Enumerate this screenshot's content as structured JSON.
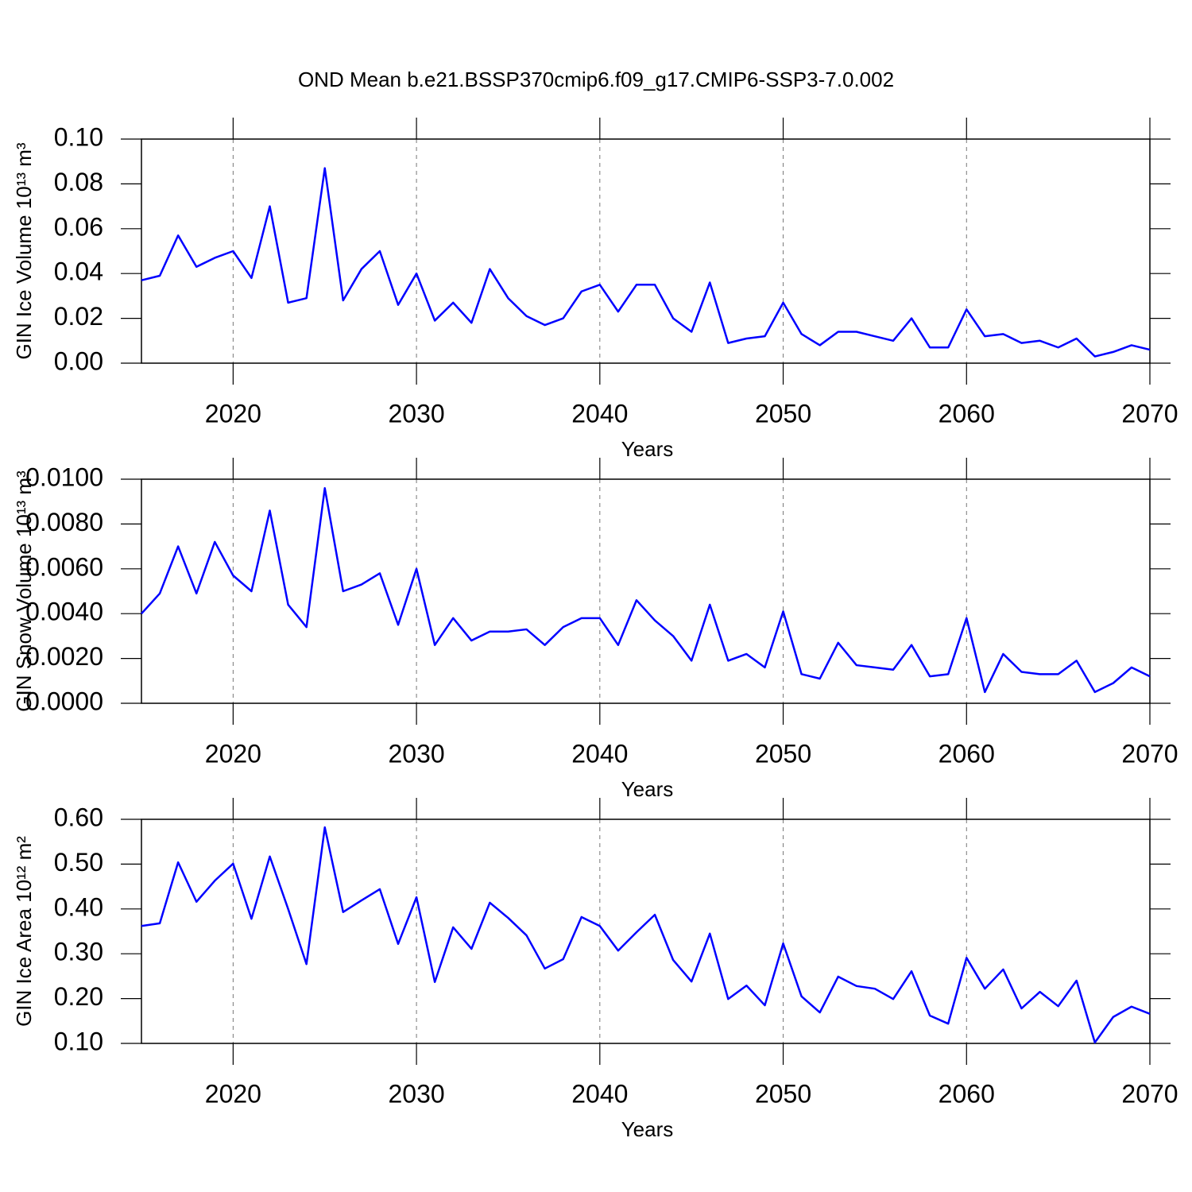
{
  "title": "OND Mean b.e21.BSSP370cmip6.f09_g17.CMIP6-SSP3-7.0.002",
  "chart_data": [
    {
      "type": "line",
      "ylabel": "GIN Ice Volume 10¹³ m³",
      "xlabel": "Years",
      "color": "#0000ff",
      "xgrid": true,
      "xlim": [
        2015,
        2070
      ],
      "xticks": [
        2020,
        2030,
        2040,
        2050,
        2060,
        2070
      ],
      "ylim": [
        0,
        0.1
      ],
      "yticks": [
        {
          "value": 0,
          "label": "0.00"
        },
        {
          "value": 0.02,
          "label": "0.02"
        },
        {
          "value": 0.04,
          "label": "0.04"
        },
        {
          "value": 0.06,
          "label": "0.06"
        },
        {
          "value": 0.08,
          "label": "0.08"
        },
        {
          "value": 0.1,
          "label": "0.10"
        }
      ],
      "x": [
        2015,
        2016,
        2017,
        2018,
        2019,
        2020,
        2021,
        2022,
        2023,
        2024,
        2025,
        2026,
        2027,
        2028,
        2029,
        2030,
        2031,
        2032,
        2033,
        2034,
        2035,
        2036,
        2037,
        2038,
        2039,
        2040,
        2041,
        2042,
        2043,
        2044,
        2045,
        2046,
        2047,
        2048,
        2049,
        2050,
        2051,
        2052,
        2053,
        2054,
        2055,
        2056,
        2057,
        2058,
        2059,
        2060,
        2061,
        2062,
        2063,
        2064,
        2065,
        2066,
        2067,
        2068,
        2069,
        2070
      ],
      "values": [
        0.037,
        0.039,
        0.057,
        0.043,
        0.047,
        0.05,
        0.038,
        0.07,
        0.027,
        0.029,
        0.087,
        0.028,
        0.042,
        0.05,
        0.026,
        0.04,
        0.019,
        0.027,
        0.018,
        0.042,
        0.029,
        0.021,
        0.017,
        0.02,
        0.032,
        0.035,
        0.023,
        0.035,
        0.035,
        0.02,
        0.014,
        0.036,
        0.009,
        0.011,
        0.012,
        0.027,
        0.013,
        0.008,
        0.014,
        0.014,
        0.012,
        0.01,
        0.02,
        0.007,
        0.007,
        0.024,
        0.012,
        0.013,
        0.009,
        0.01,
        0.007,
        0.011,
        0.003,
        0.005,
        0.008,
        0.006
      ]
    },
    {
      "type": "line",
      "ylabel": "GIN Snow Volume 10¹³ m³",
      "xlabel": "Years",
      "color": "#0000ff",
      "xgrid": true,
      "xlim": [
        2015,
        2070
      ],
      "xticks": [
        2020,
        2030,
        2040,
        2050,
        2060,
        2070
      ],
      "ylim": [
        0,
        0.01
      ],
      "yticks": [
        {
          "value": 0,
          "label": "0.0000"
        },
        {
          "value": 0.002,
          "label": "0.0020"
        },
        {
          "value": 0.004,
          "label": "0.0040"
        },
        {
          "value": 0.006,
          "label": "0.0060"
        },
        {
          "value": 0.008,
          "label": "0.0080"
        },
        {
          "value": 0.01,
          "label": "0.0100"
        }
      ],
      "x": [
        2015,
        2016,
        2017,
        2018,
        2019,
        2020,
        2021,
        2022,
        2023,
        2024,
        2025,
        2026,
        2027,
        2028,
        2029,
        2030,
        2031,
        2032,
        2033,
        2034,
        2035,
        2036,
        2037,
        2038,
        2039,
        2040,
        2041,
        2042,
        2043,
        2044,
        2045,
        2046,
        2047,
        2048,
        2049,
        2050,
        2051,
        2052,
        2053,
        2054,
        2055,
        2056,
        2057,
        2058,
        2059,
        2060,
        2061,
        2062,
        2063,
        2064,
        2065,
        2066,
        2067,
        2068,
        2069,
        2070
      ],
      "values": [
        0.004,
        0.0049,
        0.007,
        0.0049,
        0.0072,
        0.0057,
        0.005,
        0.0086,
        0.0044,
        0.0034,
        0.0096,
        0.005,
        0.0053,
        0.0058,
        0.0035,
        0.006,
        0.0026,
        0.0038,
        0.0028,
        0.0032,
        0.0032,
        0.0033,
        0.0026,
        0.0034,
        0.0038,
        0.0038,
        0.0026,
        0.0046,
        0.0037,
        0.003,
        0.0019,
        0.0044,
        0.0019,
        0.0022,
        0.0016,
        0.0041,
        0.0013,
        0.0011,
        0.0027,
        0.0017,
        0.0016,
        0.0015,
        0.0026,
        0.0012,
        0.0013,
        0.0038,
        0.0005,
        0.0022,
        0.0014,
        0.0013,
        0.0013,
        0.0019,
        0.0005,
        0.0009,
        0.0016,
        0.0012
      ]
    },
    {
      "type": "line",
      "ylabel": "GIN Ice Area 10¹² m²",
      "xlabel": "Years",
      "color": "#0000ff",
      "xgrid": true,
      "xlim": [
        2015,
        2070
      ],
      "xticks": [
        2020,
        2030,
        2040,
        2050,
        2060,
        2070
      ],
      "ylim": [
        0.1,
        0.6
      ],
      "yticks": [
        {
          "value": 0.1,
          "label": "0.10"
        },
        {
          "value": 0.2,
          "label": "0.20"
        },
        {
          "value": 0.3,
          "label": "0.30"
        },
        {
          "value": 0.4,
          "label": "0.40"
        },
        {
          "value": 0.5,
          "label": "0.50"
        },
        {
          "value": 0.6,
          "label": "0.60"
        }
      ],
      "x": [
        2015,
        2016,
        2017,
        2018,
        2019,
        2020,
        2021,
        2022,
        2023,
        2024,
        2025,
        2026,
        2027,
        2028,
        2029,
        2030,
        2031,
        2032,
        2033,
        2034,
        2035,
        2036,
        2037,
        2038,
        2039,
        2040,
        2041,
        2042,
        2043,
        2044,
        2045,
        2046,
        2047,
        2048,
        2049,
        2050,
        2051,
        2052,
        2053,
        2054,
        2055,
        2056,
        2057,
        2058,
        2059,
        2060,
        2061,
        2062,
        2063,
        2064,
        2065,
        2066,
        2067,
        2068,
        2069,
        2070
      ],
      "values": [
        0.362,
        0.368,
        0.504,
        0.416,
        0.463,
        0.501,
        0.378,
        0.517,
        0.4,
        0.277,
        0.582,
        0.393,
        0.419,
        0.444,
        0.322,
        0.426,
        0.237,
        0.359,
        0.311,
        0.414,
        0.38,
        0.341,
        0.267,
        0.288,
        0.382,
        0.362,
        0.307,
        0.348,
        0.387,
        0.286,
        0.238,
        0.345,
        0.199,
        0.229,
        0.185,
        0.323,
        0.205,
        0.169,
        0.249,
        0.228,
        0.222,
        0.199,
        0.261,
        0.162,
        0.144,
        0.291,
        0.222,
        0.265,
        0.178,
        0.215,
        0.183,
        0.24,
        0.102,
        0.159,
        0.182,
        0.166
      ]
    }
  ]
}
